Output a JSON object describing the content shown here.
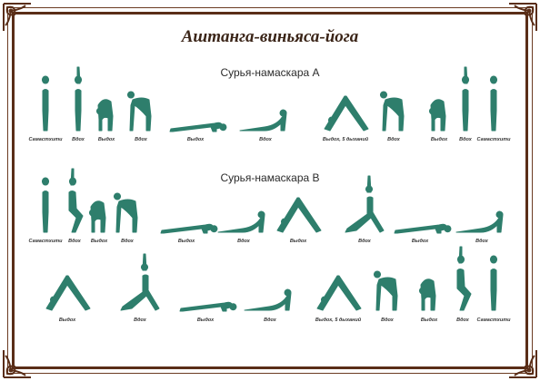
{
  "title": "Аштанга-виньяса-йога",
  "colors": {
    "figure": "#2e7e6c",
    "frame": "#5a2e18",
    "title": "#3a2417"
  },
  "sections": [
    {
      "title": "Сурья-намаскара А",
      "poses": [
        {
          "kind": "stand",
          "label": "Самастхити"
        },
        {
          "kind": "armsup",
          "label": "Вдох"
        },
        {
          "kind": "fold",
          "label": "Выдох"
        },
        {
          "kind": "halfup",
          "label": "Вдох"
        },
        {
          "kind": "plank",
          "label": "Выдох"
        },
        {
          "kind": "updog",
          "label": "Вдох"
        },
        {
          "kind": "downdog",
          "label": "Выдох, 5 дыханий"
        },
        {
          "kind": "halfup",
          "label": "Вдох"
        },
        {
          "kind": "fold",
          "label": "Выдох"
        },
        {
          "kind": "armsup",
          "label": "Вдох"
        },
        {
          "kind": "stand",
          "label": "Самастхити"
        }
      ]
    },
    {
      "title": "Сурья-намаскара В",
      "poses": [
        {
          "kind": "stand",
          "label": "Самастхити"
        },
        {
          "kind": "chair",
          "label": "Вдох"
        },
        {
          "kind": "fold",
          "label": "Выдох"
        },
        {
          "kind": "halfup",
          "label": "Вдох"
        },
        {
          "kind": "plank",
          "label": "Выдох"
        },
        {
          "kind": "updog",
          "label": "Вдох"
        },
        {
          "kind": "downdog",
          "label": "Выдох"
        },
        {
          "kind": "warrior",
          "label": "Вдох"
        },
        {
          "kind": "plank",
          "label": "Выдох"
        },
        {
          "kind": "updog",
          "label": "Вдох"
        },
        {
          "kind": "downdog",
          "label": "Выдох"
        },
        {
          "kind": "warrior",
          "label": "Вдох"
        },
        {
          "kind": "plank",
          "label": "Выдох"
        },
        {
          "kind": "updog",
          "label": "Вдох"
        },
        {
          "kind": "downdog",
          "label": "Выдох, 5 дыханий"
        },
        {
          "kind": "halfup",
          "label": "Вдох"
        },
        {
          "kind": "fold",
          "label": "Выдох"
        },
        {
          "kind": "chair",
          "label": "Вдох"
        },
        {
          "kind": "stand",
          "label": "Самастхити"
        }
      ]
    }
  ]
}
